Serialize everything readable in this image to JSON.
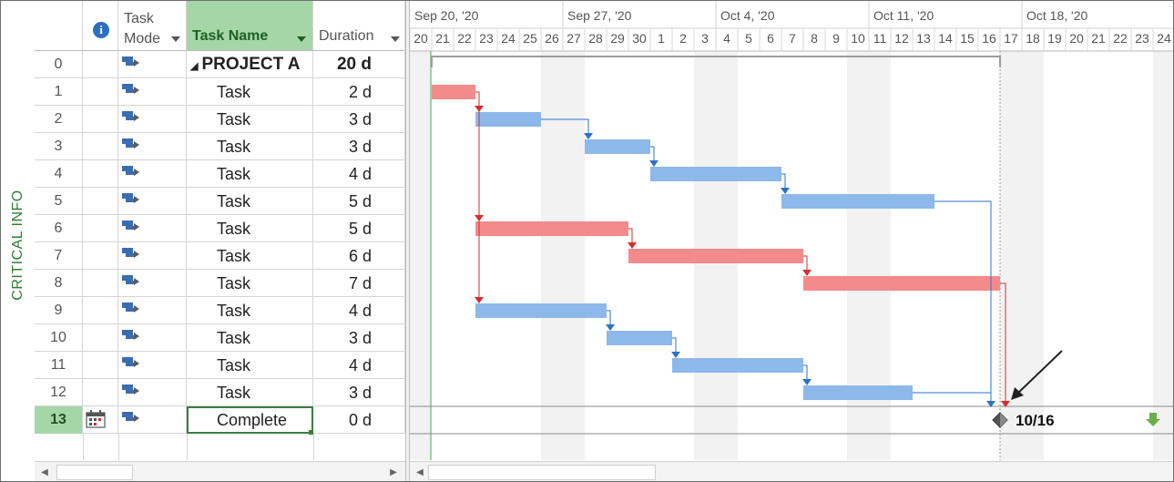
{
  "side_label": "CRITICAL INFO",
  "columns": {
    "task_mode_line1": "Task",
    "task_mode_line2": "Mode",
    "task_name": "Task Name",
    "duration": "Duration"
  },
  "rows": [
    {
      "id": "0",
      "name": "PROJECT A",
      "duration": "20 d"
    },
    {
      "id": "1",
      "name": "Task",
      "duration": "2 d"
    },
    {
      "id": "2",
      "name": "Task",
      "duration": "3 d"
    },
    {
      "id": "3",
      "name": "Task",
      "duration": "3 d"
    },
    {
      "id": "4",
      "name": "Task",
      "duration": "4 d"
    },
    {
      "id": "5",
      "name": "Task",
      "duration": "5 d"
    },
    {
      "id": "6",
      "name": "Task",
      "duration": "5 d"
    },
    {
      "id": "7",
      "name": "Task",
      "duration": "6 d"
    },
    {
      "id": "8",
      "name": "Task",
      "duration": "7 d"
    },
    {
      "id": "9",
      "name": "Task",
      "duration": "4 d"
    },
    {
      "id": "10",
      "name": "Task",
      "duration": "3 d"
    },
    {
      "id": "11",
      "name": "Task",
      "duration": "4 d"
    },
    {
      "id": "12",
      "name": "Task",
      "duration": "3 d"
    },
    {
      "id": "13",
      "name": "Complete",
      "duration": "0 d"
    }
  ],
  "timescale": {
    "weeks": [
      "Sep 20, '20",
      "Sep 27, '20",
      "Oct 4, '20",
      "Oct 11, '20",
      "Oct 18, '20"
    ],
    "days": [
      "20",
      "21",
      "22",
      "23",
      "24",
      "25",
      "26",
      "27",
      "28",
      "29",
      "30",
      "1",
      "2",
      "3",
      "4",
      "5",
      "6",
      "7",
      "8",
      "9",
      "10",
      "11",
      "12",
      "13",
      "14",
      "15",
      "16",
      "17",
      "18",
      "19",
      "20",
      "21",
      "22",
      "23",
      "24"
    ]
  },
  "gantt": {
    "tasks": [
      {
        "row": 1,
        "start": 0,
        "days": 2,
        "critical": true
      },
      {
        "row": 2,
        "start": 2,
        "days": 3,
        "critical": false
      },
      {
        "row": 3,
        "start": 7,
        "days": 3,
        "critical": false
      },
      {
        "row": 4,
        "start": 10,
        "days": 6,
        "critical": false
      },
      {
        "row": 5,
        "start": 16,
        "days": 7,
        "critical": false
      },
      {
        "row": 6,
        "start": 2,
        "days": 7,
        "critical": true
      },
      {
        "row": 7,
        "start": 9,
        "days": 8,
        "critical": true
      },
      {
        "row": 8,
        "start": 17,
        "days": 9,
        "critical": true
      },
      {
        "row": 9,
        "start": 2,
        "days": 6,
        "critical": false
      },
      {
        "row": 10,
        "start": 8,
        "days": 3,
        "critical": false
      },
      {
        "row": 11,
        "start": 11,
        "days": 6,
        "critical": false
      },
      {
        "row": 12,
        "start": 17,
        "days": 5,
        "critical": false
      }
    ],
    "milestone_label": "10/16",
    "colors": {
      "critical": "#f48b8b",
      "normal": "#8db8ea",
      "critical_link": "#d32f2f",
      "normal_link": "#2b72c9",
      "weekend": "#f2f2f2",
      "status_line": "#5aa55a"
    }
  }
}
